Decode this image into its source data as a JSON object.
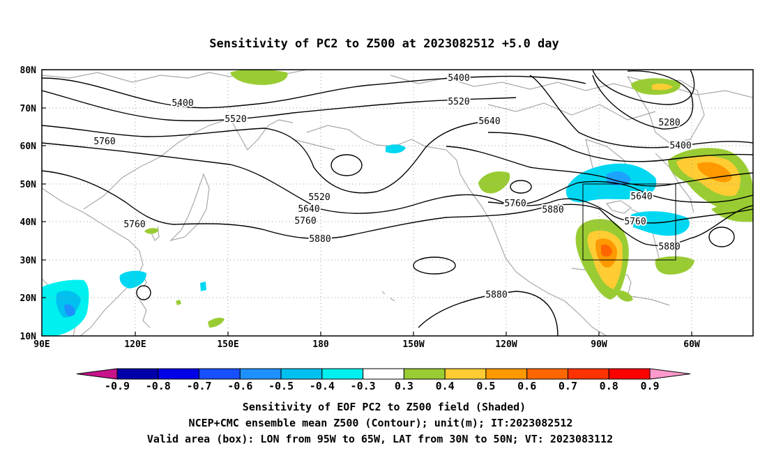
{
  "title": "Sensitivity of PC2 to Z500 at 2023082512 +5.0 day",
  "lat_labels": [
    "80N",
    "70N",
    "60N",
    "50N",
    "40N",
    "30N",
    "20N",
    "10N"
  ],
  "lon_labels": [
    "90E",
    "120E",
    "150E",
    "180",
    "150W",
    "120W",
    "90W",
    "60W"
  ],
  "contour_labels": [
    "5400",
    "5400",
    "5520",
    "5520",
    "5640",
    "5760",
    "5280",
    "5400",
    "5520",
    "5640",
    "5760",
    "5760",
    "5880",
    "5760",
    "5880",
    "5640",
    "5760",
    "5880",
    "5880"
  ],
  "colorbar": {
    "ticks": [
      "-0.9",
      "-0.8",
      "-0.7",
      "-0.6",
      "-0.5",
      "-0.4",
      "-0.3",
      "0.3",
      "0.4",
      "0.5",
      "0.6",
      "0.7",
      "0.8",
      "0.9"
    ],
    "colors": [
      "#c7148a",
      "#0000a8",
      "#0000e6",
      "#1650ff",
      "#1e90ff",
      "#00c0f0",
      "#00f0f0",
      "#ffffff",
      "#99cc33",
      "#ffcc33",
      "#ff9900",
      "#ff6600",
      "#ff3300",
      "#ff0000",
      "#ff99cc"
    ]
  },
  "caption": [
    "Sensitivity of EOF PC2 to Z500 field (Shaded)",
    "NCEP+CMC ensemble mean Z500 (Contour); unit(m); IT:2023082512",
    "Valid area (box): LON from 95W to 65W, LAT from 30N to 50N; VT: 2023083112"
  ],
  "valid_box": {
    "lon_min": -95,
    "lon_max": -65,
    "lat_min": 30,
    "lat_max": 50
  }
}
